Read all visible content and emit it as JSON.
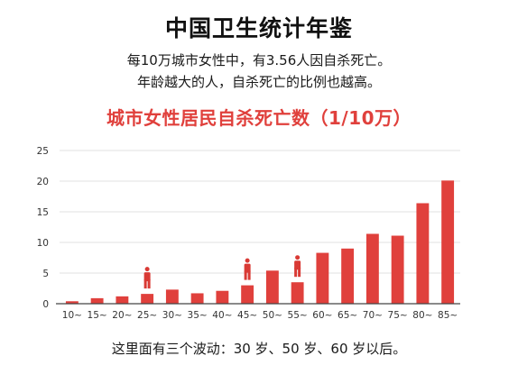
{
  "header": {
    "title": "中国卫生统计年鉴",
    "line1": "每10万城市女性中，有3.56人因自杀死亡。",
    "line2": "年龄越大的人，自杀死亡的比例也越高。"
  },
  "footnote": "这里面有三个波动：30 岁、50 岁、60 岁以后。",
  "colors": {
    "bar": "#e0403c",
    "title": "#e0403c",
    "grid": "#e2e2e2",
    "axis": "#444444",
    "person": "#d93a35"
  },
  "chart_data": {
    "type": "bar",
    "title": "城市女性居民自杀死亡数（1/10万）",
    "xlabel": "",
    "ylabel": "",
    "categories": [
      "10~",
      "15~",
      "20~",
      "25~",
      "30~",
      "35~",
      "40~",
      "45~",
      "50~",
      "55~",
      "60~",
      "65~",
      "70~",
      "75~",
      "80~",
      "85~"
    ],
    "values": [
      0.4,
      0.9,
      1.2,
      1.6,
      2.3,
      1.7,
      2.1,
      3.0,
      5.4,
      3.5,
      8.3,
      9.0,
      11.4,
      11.1,
      16.4,
      20.1
    ],
    "ylim": [
      0,
      25
    ],
    "yticks": [
      0,
      5,
      10,
      15,
      20,
      25
    ],
    "grid": true,
    "annotations": [
      {
        "category": "25~",
        "icon": "person-icon"
      },
      {
        "category": "45~",
        "icon": "person-icon"
      },
      {
        "category": "55~",
        "icon": "person-icon"
      }
    ]
  }
}
